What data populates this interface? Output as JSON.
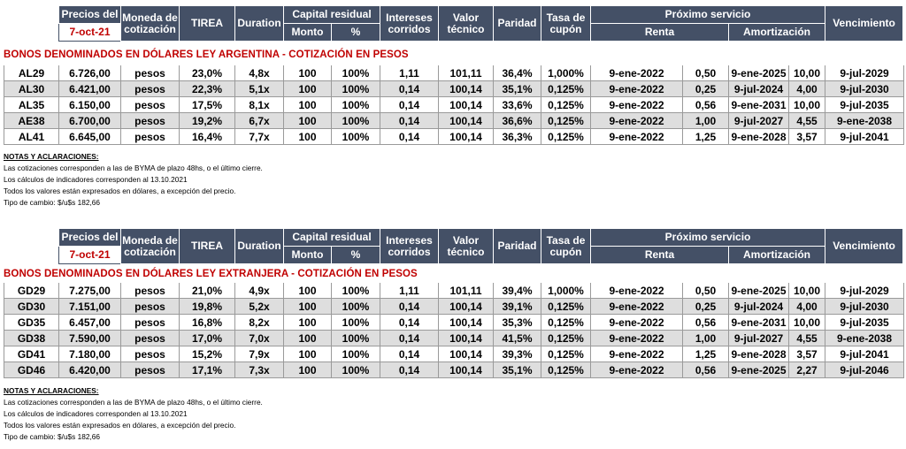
{
  "header": {
    "precios_del": "Precios del",
    "date": "7-oct-21",
    "moneda": [
      "Moneda de",
      "cotización"
    ],
    "tirea": "TIREA",
    "duration": "Duration",
    "capital_residual": "Capital residual",
    "monto": "Monto",
    "pct": "%",
    "intereses": [
      "Intereses",
      "corridos"
    ],
    "valor": [
      "Valor",
      "técnico"
    ],
    "paridad": "Paridad",
    "tasa": [
      "Tasa de",
      "cupón"
    ],
    "proximo_servicio": "Próximo servicio",
    "renta": "Renta",
    "amortizacion": "Amortización",
    "vencimiento": "Vencimiento"
  },
  "sections": [
    {
      "title": "BONOS DENOMINADOS EN DÓLARES LEY ARGENTINA    -    COTIZACIÓN EN PESOS",
      "rows": [
        [
          "AL29",
          "6.726,00",
          "pesos",
          "23,0%",
          "4,8x",
          "100",
          "100%",
          "1,11",
          "101,11",
          "36,4%",
          "1,000%",
          "9-ene-2022",
          "0,50",
          "9-ene-2025",
          "10,00",
          "9-jul-2029"
        ],
        [
          "AL30",
          "6.421,00",
          "pesos",
          "22,3%",
          "5,1x",
          "100",
          "100%",
          "0,14",
          "100,14",
          "35,1%",
          "0,125%",
          "9-ene-2022",
          "0,25",
          "9-jul-2024",
          "4,00",
          "9-jul-2030"
        ],
        [
          "AL35",
          "6.150,00",
          "pesos",
          "17,5%",
          "8,1x",
          "100",
          "100%",
          "0,14",
          "100,14",
          "33,6%",
          "0,125%",
          "9-ene-2022",
          "0,56",
          "9-ene-2031",
          "10,00",
          "9-jul-2035"
        ],
        [
          "AE38",
          "6.700,00",
          "pesos",
          "19,2%",
          "6,7x",
          "100",
          "100%",
          "0,14",
          "100,14",
          "36,6%",
          "0,125%",
          "9-ene-2022",
          "1,00",
          "9-jul-2027",
          "4,55",
          "9-ene-2038"
        ],
        [
          "AL41",
          "6.645,00",
          "pesos",
          "16,4%",
          "7,7x",
          "100",
          "100%",
          "0,14",
          "100,14",
          "36,3%",
          "0,125%",
          "9-ene-2022",
          "1,25",
          "9-ene-2028",
          "3,57",
          "9-jul-2041"
        ]
      ],
      "notes": {
        "title": "NOTAS Y ACLARACIONES:",
        "lines": [
          "Las cotizaciones corresponden a las de BYMA de plazo 48hs, o el último cierre.",
          "Los cálculos de indicadores corresponden al 13.10.2021",
          "Todos los valores están expresados en dólares, a excepción del precio.",
          "Tipo de cambio: $/u$s 182,66"
        ]
      }
    },
    {
      "title": "BONOS DENOMINADOS EN DÓLARES LEY EXTRANJERA    -    COTIZACIÓN EN PESOS",
      "rows": [
        [
          "GD29",
          "7.275,00",
          "pesos",
          "21,0%",
          "4,9x",
          "100",
          "100%",
          "1,11",
          "101,11",
          "39,4%",
          "1,000%",
          "9-ene-2022",
          "0,50",
          "9-ene-2025",
          "10,00",
          "9-jul-2029"
        ],
        [
          "GD30",
          "7.151,00",
          "pesos",
          "19,8%",
          "5,2x",
          "100",
          "100%",
          "0,14",
          "100,14",
          "39,1%",
          "0,125%",
          "9-ene-2022",
          "0,25",
          "9-jul-2024",
          "4,00",
          "9-jul-2030"
        ],
        [
          "GD35",
          "6.457,00",
          "pesos",
          "16,8%",
          "8,2x",
          "100",
          "100%",
          "0,14",
          "100,14",
          "35,3%",
          "0,125%",
          "9-ene-2022",
          "0,56",
          "9-ene-2031",
          "10,00",
          "9-jul-2035"
        ],
        [
          "GD38",
          "7.590,00",
          "pesos",
          "17,0%",
          "7,0x",
          "100",
          "100%",
          "0,14",
          "100,14",
          "41,5%",
          "0,125%",
          "9-ene-2022",
          "1,00",
          "9-jul-2027",
          "4,55",
          "9-ene-2038"
        ],
        [
          "GD41",
          "7.180,00",
          "pesos",
          "15,2%",
          "7,9x",
          "100",
          "100%",
          "0,14",
          "100,14",
          "39,3%",
          "0,125%",
          "9-ene-2022",
          "1,25",
          "9-ene-2028",
          "3,57",
          "9-jul-2041"
        ],
        [
          "GD46",
          "6.420,00",
          "pesos",
          "17,1%",
          "7,3x",
          "100",
          "100%",
          "0,14",
          "100,14",
          "35,1%",
          "0,125%",
          "9-ene-2022",
          "0,56",
          "9-ene-2025",
          "2,27",
          "9-jul-2046"
        ]
      ],
      "notes": {
        "title": "NOTAS Y ACLARACIONES:",
        "lines": [
          "Las cotizaciones corresponden a las de BYMA de plazo 48hs, o el último cierre.",
          "Los cálculos de indicadores corresponden al 13.10.2021",
          "Todos los valores están expresados en dólares, a excepción del precio.",
          "Tipo de cambio: $/u$s 182,66"
        ]
      }
    }
  ]
}
